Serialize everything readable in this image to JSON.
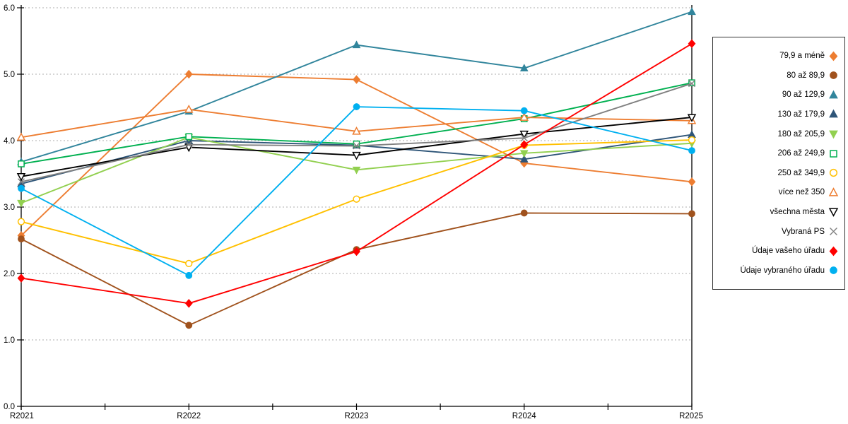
{
  "chart_data": {
    "type": "line",
    "title": "",
    "xlabel": "",
    "ylabel": "",
    "categories": [
      "R2021",
      "R2022",
      "R2023",
      "R2024",
      "R2025"
    ],
    "ylim": [
      0,
      6
    ],
    "y_ticks": [
      "0.0",
      "1.0",
      "2.0",
      "3.0",
      "4.0",
      "5.0",
      "6.0"
    ],
    "grid": "horizontal-dotted",
    "legend_position": "right",
    "background": "#FFFFFF",
    "axis_color": "#000000",
    "gridline_color": "#ADADAD",
    "series": [
      {
        "name": "79,9 a méně",
        "color": "#ED7D31",
        "marker": "diamond",
        "fill": "solid",
        "values": [
          2.57,
          5.0,
          4.92,
          3.66,
          3.38
        ]
      },
      {
        "name": "80 až 89,9",
        "color": "#A0521D",
        "marker": "circle",
        "fill": "solid",
        "values": [
          2.52,
          1.22,
          2.36,
          2.91,
          2.9
        ]
      },
      {
        "name": "90 až 129,9",
        "color": "#31859C",
        "marker": "triangle-up",
        "fill": "solid",
        "values": [
          3.68,
          4.44,
          5.44,
          5.09,
          5.94
        ]
      },
      {
        "name": "130 až 179,9",
        "color": "#2E5578",
        "marker": "triangle-up",
        "fill": "solid",
        "values": [
          3.35,
          4.0,
          3.93,
          3.72,
          4.09
        ]
      },
      {
        "name": "180 až 205,9",
        "color": "#92D050",
        "marker": "triangle-down",
        "fill": "solid",
        "values": [
          3.06,
          4.05,
          3.56,
          3.81,
          3.96
        ]
      },
      {
        "name": "206 až 249,9",
        "color": "#00B050",
        "marker": "square",
        "fill": "open",
        "values": [
          3.65,
          4.06,
          3.95,
          4.33,
          4.87
        ]
      },
      {
        "name": "250 až 349,9",
        "color": "#FFC000",
        "marker": "circle",
        "fill": "open",
        "values": [
          2.78,
          2.15,
          3.12,
          3.93,
          4.01
        ]
      },
      {
        "name": "více než 350",
        "color": "#ED7D31",
        "marker": "triangle-up",
        "fill": "open",
        "values": [
          4.05,
          4.47,
          4.14,
          4.35,
          4.3
        ]
      },
      {
        "name": "všechna města",
        "color": "#000000",
        "marker": "triangle-down",
        "fill": "open",
        "values": [
          3.46,
          3.9,
          3.78,
          4.1,
          4.35
        ]
      },
      {
        "name": "Vybraná PS",
        "color": "#808080",
        "marker": "x",
        "fill": "line",
        "values": [
          3.38,
          3.94,
          3.92,
          4.04,
          4.86
        ]
      },
      {
        "name": "Údaje vašeho úřadu",
        "color": "#FF0000",
        "marker": "diamond",
        "fill": "solid",
        "values": [
          1.93,
          1.55,
          2.33,
          3.94,
          5.46
        ]
      },
      {
        "name": "Údaje vybraného úřadu",
        "color": "#00B0F0",
        "marker": "circle",
        "fill": "solid",
        "values": [
          3.28,
          1.97,
          4.51,
          4.45,
          3.85
        ]
      }
    ]
  }
}
